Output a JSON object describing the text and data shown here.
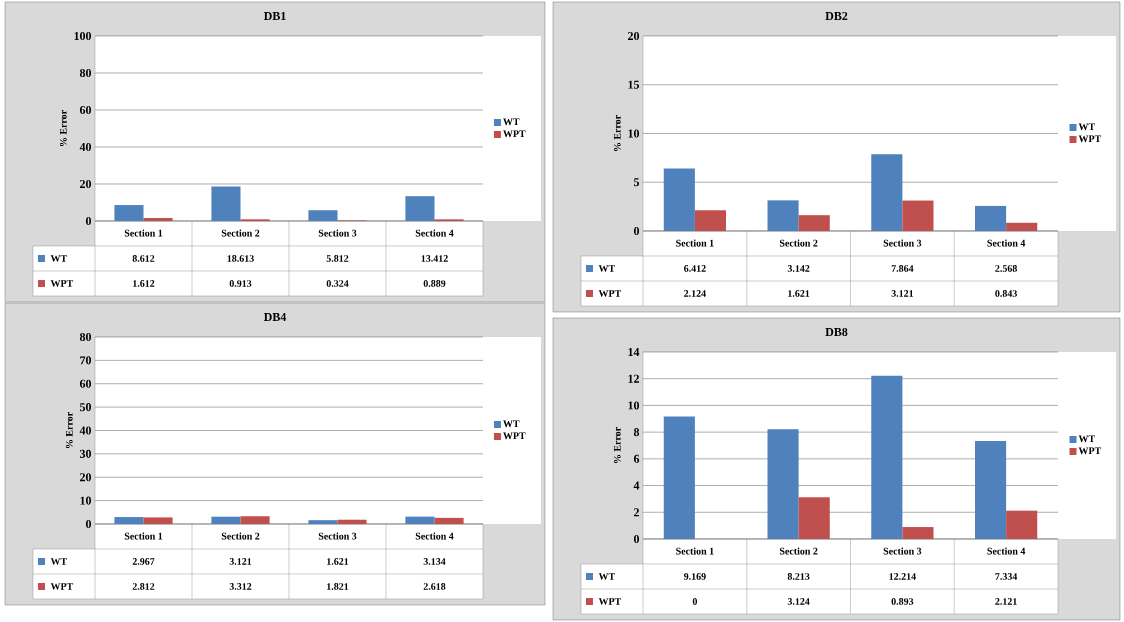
{
  "chart_data": [
    {
      "type": "bar",
      "title": "DB1",
      "ylabel": "% Error",
      "categories": [
        "Section 1",
        "Section 2",
        "Section 3",
        "Section 4"
      ],
      "series": [
        {
          "name": "WT",
          "color": "#4f81bd",
          "values": [
            8.612,
            18.613,
            5.812,
            13.412
          ]
        },
        {
          "name": "WPT",
          "color": "#c0504d",
          "values": [
            1.612,
            0.913,
            0.324,
            0.889
          ]
        }
      ],
      "ylim": [
        0,
        100
      ],
      "yticks": [
        0,
        20,
        40,
        60,
        80,
        100
      ],
      "grid": "y",
      "legend": "right",
      "data_labels": true
    },
    {
      "type": "bar",
      "title": "DB2",
      "ylabel": "% Error",
      "categories": [
        "Section 1",
        "Section 2",
        "Section 3",
        "Section 4"
      ],
      "series": [
        {
          "name": "WT",
          "color": "#4f81bd",
          "values": [
            6.412,
            3.142,
            7.864,
            2.568
          ]
        },
        {
          "name": "WPT",
          "color": "#c0504d",
          "values": [
            2.124,
            1.621,
            3.121,
            0.843
          ]
        }
      ],
      "ylim": [
        0,
        20
      ],
      "yticks": [
        0,
        5,
        10,
        15,
        20
      ],
      "grid": "y",
      "legend": "right",
      "data_labels": true
    },
    {
      "type": "bar",
      "title": "DB4",
      "ylabel": "% Error",
      "categories": [
        "Section 1",
        "Section 2",
        "Section 3",
        "Section 4"
      ],
      "series": [
        {
          "name": "WT",
          "color": "#4f81bd",
          "values": [
            2.967,
            3.121,
            1.621,
            3.134
          ]
        },
        {
          "name": "WPT",
          "color": "#c0504d",
          "values": [
            2.812,
            3.312,
            1.821,
            2.618
          ]
        }
      ],
      "ylim": [
        0,
        80
      ],
      "yticks": [
        0,
        10,
        20,
        30,
        40,
        50,
        60,
        70,
        80
      ],
      "grid": "y",
      "legend": "right",
      "data_labels": true
    },
    {
      "type": "bar",
      "title": "DB8",
      "ylabel": "% Error",
      "categories": [
        "Section 1",
        "Section 2",
        "Section 3",
        "Section 4"
      ],
      "series": [
        {
          "name": "WT",
          "color": "#4f81bd",
          "values": [
            9.169,
            8.213,
            12.214,
            7.334
          ]
        },
        {
          "name": "WPT",
          "color": "#c0504d",
          "values": [
            0,
            3.124,
            0.893,
            2.121
          ]
        }
      ],
      "ylim": [
        0,
        14
      ],
      "yticks": [
        0,
        2,
        4,
        6,
        8,
        10,
        12,
        14
      ],
      "grid": "y",
      "legend": "right",
      "data_labels": true
    }
  ]
}
